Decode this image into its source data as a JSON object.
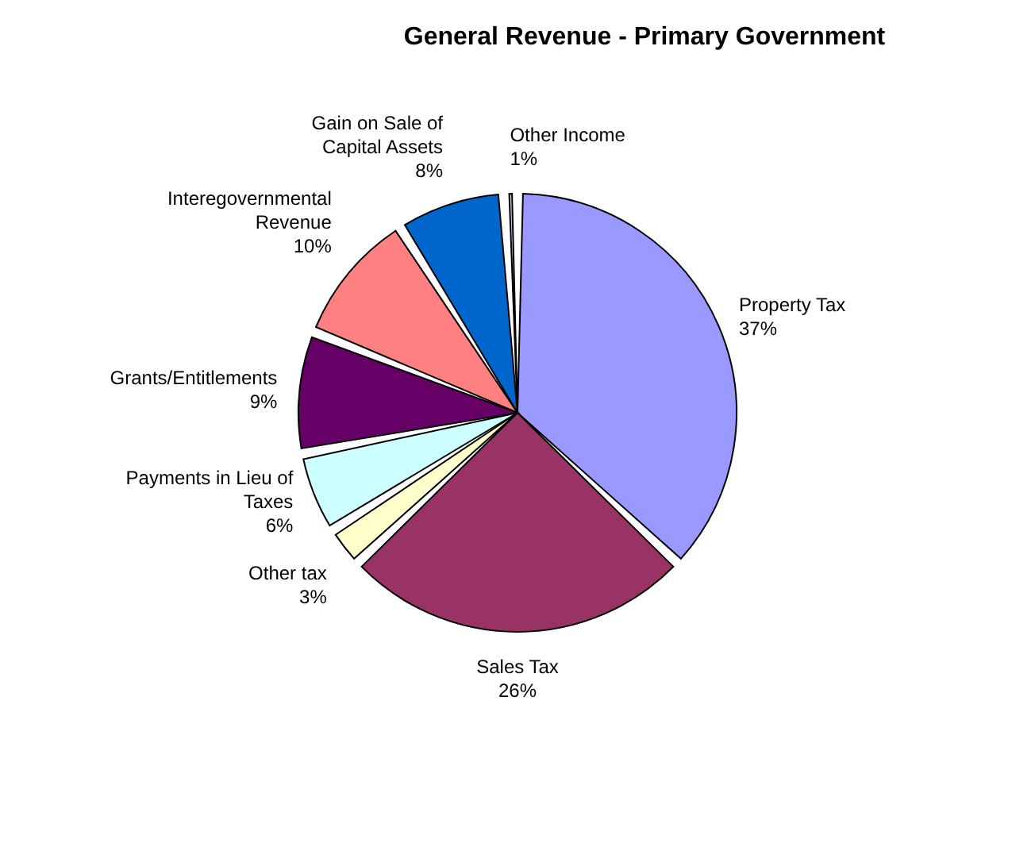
{
  "chart_data": {
    "type": "pie",
    "title": "General Revenue - Primary Government",
    "categories": [
      "Property Tax",
      "Sales Tax",
      "Other tax",
      "Payments in Lieu of Taxes",
      "Grants/Entitlements",
      "Interegovernmental Revenue",
      "Gain on Sale of Capital Assets",
      "Other Income"
    ],
    "values": [
      37,
      26,
      3,
      6,
      9,
      10,
      8,
      1
    ],
    "value_labels": [
      "37%",
      "26%",
      "3%",
      "6%",
      "9%",
      "10%",
      "8%",
      "1%"
    ],
    "colors": [
      "#9999ff",
      "#993366",
      "#ffffcc",
      "#ccffff",
      "#660066",
      "#ff8080",
      "#0066cc",
      "#ccccff"
    ]
  }
}
